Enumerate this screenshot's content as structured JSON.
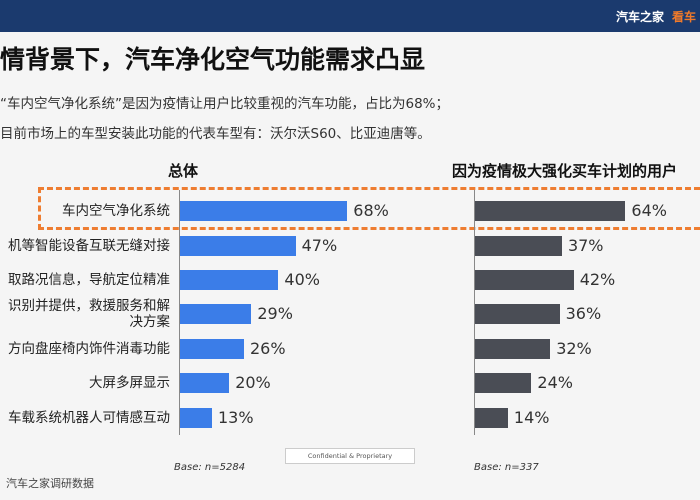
{
  "header": {
    "brand": "汽车之家",
    "brand_cut": "看车",
    "title": "情背景下，汽车净化空气功能需求凸显",
    "bullets": [
      "“车内空气净化系统”是因为疫情让用户比较重视的汽车功能，占比为68%；",
      "目前市场上的车型安装此功能的代表车型有：沃尔沃S60、比亚迪唐等。"
    ]
  },
  "confidential": "Confidential & Proprietary",
  "source": "汽车之家调研数据",
  "colors": {
    "series1": "#3b7de8",
    "series2": "#4a4d55",
    "highlight": "#ee7d31"
  },
  "chart_data": [
    {
      "type": "bar",
      "orientation": "horizontal",
      "title": "总体",
      "categories": [
        "车内空气净化系统",
        "机等智能设备互联无缝对接",
        "取路况信息，导航定位精准",
        "识别并提供，救援服务和解决方案",
        "方向盘座椅内饰件消毒功能",
        "大屏多屏显示",
        "车载系统机器人可情感互动"
      ],
      "category_lines": [
        [
          "车内空气净化系统"
        ],
        [
          "机等智能设备互联无缝对接"
        ],
        [
          "取路况信息，导航定位精准"
        ],
        [
          "识别并提供，救援服务和解",
          "决方案"
        ],
        [
          "方向盘座椅内饰件消毒功能"
        ],
        [
          "大屏多屏显示"
        ],
        [
          "车载系统机器人可情感互动"
        ]
      ],
      "values": [
        68,
        47,
        40,
        29,
        26,
        20,
        13
      ],
      "value_labels": [
        "68%",
        "47%",
        "40%",
        "29%",
        "26%",
        "20%",
        "13%"
      ],
      "base": "Base:  n=5284",
      "highlighted_category": "车内空气净化系统"
    },
    {
      "type": "bar",
      "orientation": "horizontal",
      "title": "因为疫情极大强化买车计划的用户",
      "values": [
        64,
        37,
        42,
        36,
        32,
        24,
        14
      ],
      "value_labels": [
        "64%",
        "37%",
        "42%",
        "36%",
        "32%",
        "24%",
        "14%"
      ],
      "base": "Base:  n=337"
    }
  ]
}
